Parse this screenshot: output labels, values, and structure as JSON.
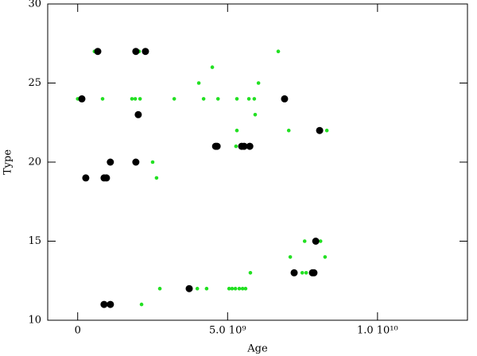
{
  "chart_data": {
    "type": "scatter",
    "x_label": "Age",
    "y_label": "Type",
    "xlim": [
      -1000000000.0,
      13000000000.0
    ],
    "ylim": [
      10,
      30
    ],
    "xticks": [
      0,
      {
        "value": 5000000000.0,
        "label": "5.0 10⁹"
      },
      {
        "value": 10000000000.0,
        "label": "1.0 10¹⁰"
      }
    ],
    "yticks": [
      10,
      15,
      20,
      25,
      30
    ],
    "series": [
      {
        "color": "#22e022",
        "size": 2.3,
        "x": [
          0,
          60000000.0,
          560000000.0,
          830000000.0,
          1810000000.0,
          1920000000.0,
          2080000000.0,
          2050000000.0,
          3220000000.0,
          4040000000.0,
          4200000000.0,
          4490000000.0,
          4680000000.0,
          5310000000.0,
          5710000000.0,
          5890000000.0,
          5920000000.0,
          6030000000.0,
          6690000000.0,
          7040000000.0,
          5310000000.0,
          2500000000.0,
          2630000000.0,
          2740000000.0,
          2130000000.0,
          3990000000.0,
          4300000000.0,
          5050000000.0,
          5150000000.0,
          5260000000.0,
          5390000000.0,
          5500000000.0,
          5600000000.0,
          5760000000.0,
          5280000000.0,
          5440000000.0,
          5660000000.0,
          7090000000.0,
          7490000000.0,
          7570000000.0,
          8100000000.0,
          8250000000.0,
          8310000000.0,
          7620000000.0
        ],
        "values": [
          24,
          24,
          27,
          24,
          24,
          24,
          24,
          27,
          24,
          25,
          24,
          26,
          24,
          24,
          24,
          24,
          23,
          25,
          27,
          22,
          22,
          20,
          19,
          12,
          11,
          12,
          12,
          12,
          12,
          12,
          12,
          12,
          12,
          13,
          21,
          21,
          21,
          14,
          13,
          15,
          15,
          14,
          22,
          13
        ]
      },
      {
        "color": "#000000",
        "size": 4.5,
        "x": [
          140000000.0,
          670000000.0,
          270000000.0,
          880000000.0,
          960000000.0,
          1090000000.0,
          880000000.0,
          1090000000.0,
          1940000000.0,
          2260000000.0,
          2020000000.0,
          1940000000.0,
          3720000000.0,
          4600000000.0,
          4650000000.0,
          5470000000.0,
          5550000000.0,
          5740000000.0,
          6900000000.0,
          7220000000.0,
          7830000000.0,
          7880000000.0,
          7940000000.0,
          8070000000.0
        ],
        "values": [
          24,
          27,
          19,
          19,
          19,
          20,
          11,
          11,
          27,
          27,
          23,
          20,
          12,
          21,
          21,
          21,
          21,
          21,
          24,
          13,
          13,
          13,
          15,
          22
        ]
      }
    ]
  }
}
